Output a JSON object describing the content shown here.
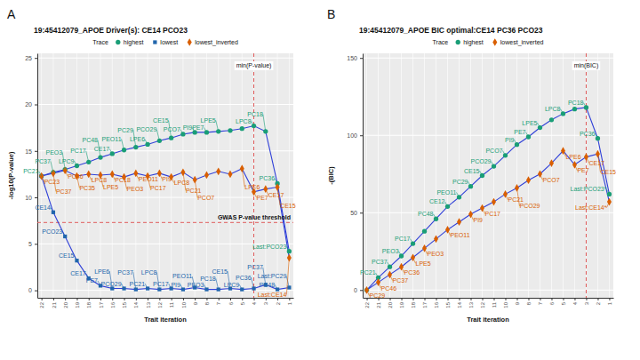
{
  "chart_data": [
    {
      "type": "line",
      "tag": "A",
      "title": "19:45412079_APOE Driver(s): CE14 PCO23",
      "legend_title": "Trace",
      "legend": "top",
      "grid": true,
      "x_label": "Trait iteration",
      "y_label": "-log10(P-value)",
      "categories": [
        "22",
        "21",
        "20",
        "19",
        "18",
        "17",
        "16",
        "15",
        "14",
        "13",
        "12",
        "11",
        "10",
        "9",
        "8",
        "7",
        "6",
        "5",
        "4",
        "3",
        "2",
        "1"
      ],
      "ylim": [
        -0.8,
        25.5
      ],
      "yticks": [
        0,
        5,
        10,
        15,
        20,
        25
      ],
      "vline": {
        "x": "4",
        "label": "min(P-value)"
      },
      "hline": {
        "y": 7.3,
        "label": "GWAS P-value threshold"
      },
      "series": [
        {
          "name": "highest",
          "color": "#1a9e77",
          "marker": "circle",
          "line_style": "solid",
          "values": [
            12.3,
            12.7,
            13.0,
            13.4,
            13.8,
            14.3,
            14.7,
            15.1,
            15.4,
            15.7,
            16.1,
            16.4,
            16.8,
            17.0,
            17.0,
            17.1,
            17.2,
            17.4,
            17.7,
            17.1,
            11.5,
            4.2
          ],
          "labels": [
            "PC21",
            "PC37",
            "PEO3",
            "LPC9",
            "PC17",
            "PC48",
            "CE17",
            "PEO11",
            "PC29",
            "LPE6",
            "PCO29",
            "CE15",
            "PCO7",
            "PI9",
            "PE7",
            "LPE5",
            null,
            null,
            "LPC8",
            "PC18",
            "PC36",
            "Last:PCO23"
          ]
        },
        {
          "name": "lowest",
          "color": "#2166ac",
          "marker": "square",
          "line_style": "solid",
          "values": [
            12.3,
            8.4,
            5.8,
            3.2,
            1.3,
            0.5,
            0.2,
            0.2,
            0.1,
            0.2,
            0.1,
            0.2,
            0.1,
            0.3,
            0.1,
            0.1,
            0.2,
            0.1,
            0.2,
            0.6,
            0.1,
            0.3
          ],
          "labels": [
            null,
            "CE14",
            "PCO23",
            "CE15",
            "CE17",
            "PE7",
            "LPE6",
            "PCO29",
            "PC37",
            "PC21",
            "LPC8",
            "PC17",
            "PI9",
            "PEO11",
            "PEO3",
            "PC18",
            "CE15",
            "LPC9",
            "PC36",
            "PC37",
            "PC48",
            "Last:PC29"
          ]
        },
        {
          "name": "lowest_inverted",
          "color": "#d95f02",
          "marker": "diamond",
          "line_style": "solid",
          "values": [
            12.3,
            12.6,
            12.9,
            12.3,
            12.5,
            12.4,
            12.5,
            12.2,
            12.6,
            12.3,
            12.6,
            12.2,
            12.7,
            11.9,
            12.4,
            12.8,
            12.5,
            13.1,
            10.6,
            10.9,
            11.1,
            3.5
          ],
          "labels": [
            "PC23",
            "PC37",
            "PC46",
            "PC35",
            "LPC8",
            "LPE5",
            "PC18",
            "PEO3",
            "PEO11",
            "PC17",
            "PI9",
            "LPC8",
            "PC21",
            "PCO7",
            null,
            null,
            null,
            "LPE6",
            "PE7",
            "CE17",
            "CE15",
            "Last:CE14"
          ]
        }
      ]
    },
    {
      "type": "line",
      "tag": "B",
      "title": "19:45412079_APOE BIC optimal:CE14 PC36 PCO23",
      "legend_title": "Trace",
      "legend": "top",
      "grid": true,
      "x_label": "Trait iteration",
      "y_label": "-(BIC)",
      "categories": [
        "22",
        "21",
        "20",
        "19",
        "18",
        "17",
        "16",
        "15",
        "14",
        "13",
        "12",
        "11",
        "10",
        "9",
        "8",
        "7",
        "6",
        "5",
        "4",
        "3",
        "2",
        "1"
      ],
      "ylim": [
        -5,
        153
      ],
      "yticks": [
        0,
        50,
        100,
        150
      ],
      "vline": {
        "x": "3",
        "label": "min(BIC)"
      },
      "series": [
        {
          "name": "highest",
          "color": "#1a9e77",
          "marker": "circle",
          "line_style": "solid",
          "values": [
            0,
            8,
            15,
            22,
            30,
            38,
            46,
            54,
            60,
            67,
            74,
            80,
            87,
            94,
            99,
            105,
            110,
            114,
            117,
            118,
            98,
            62
          ],
          "labels": [
            null,
            "PC21",
            "PC37",
            "PEO3",
            "PC17",
            null,
            "PC48",
            "CE12",
            "PEO11",
            "PC29",
            "CE15",
            "PCO29",
            "PCO7",
            "PI9",
            "PE7",
            "LPE5",
            null,
            "LPC8",
            null,
            "PC18",
            "PC36",
            "Last:PCO23*"
          ]
        },
        {
          "name": "lowest_inverted",
          "color": "#d95f02",
          "marker": "diamond",
          "line_style": "solid",
          "values": [
            0,
            5,
            10,
            15,
            21,
            27,
            33,
            39,
            44,
            49,
            53,
            57,
            62,
            66,
            71,
            75,
            82,
            90,
            81,
            86,
            88,
            57
          ],
          "labels": [
            "PC29",
            "PC46",
            "PC37",
            "PC36",
            "LPE5",
            "PEO3",
            null,
            "PEO11",
            null,
            "PI9",
            "PC17",
            null,
            "PC21",
            "PCO29",
            null,
            "PCO7",
            null,
            "LPE6",
            "PE7",
            "CE17",
            "CE15",
            "Last:CE14*"
          ]
        }
      ]
    }
  ]
}
